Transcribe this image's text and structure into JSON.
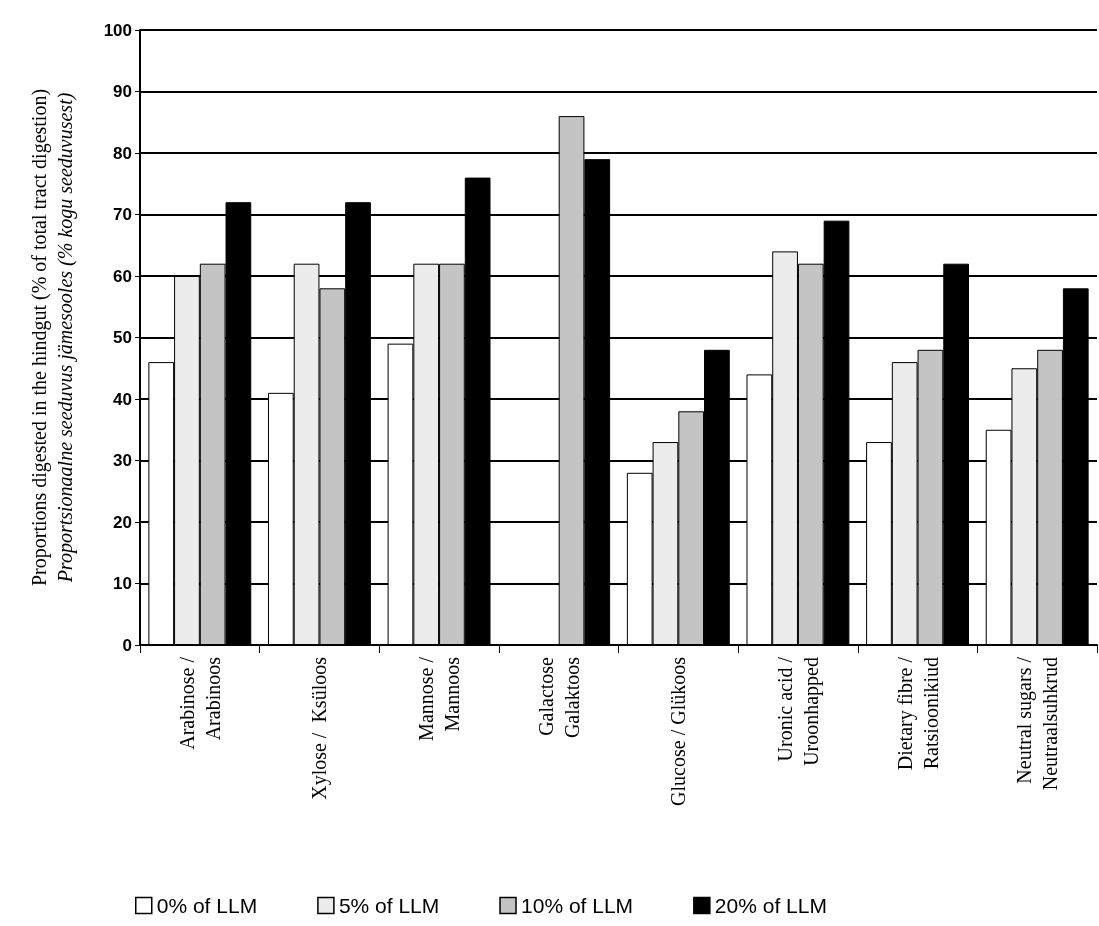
{
  "chart_data": {
    "type": "bar",
    "ylabel": "Proportions digested in the hindgut (% of total tract digestion)\nProportsionaalne seeduvus jämesooles (% kogu seeduvusest)",
    "categories": [
      "Arabinose /\nArabinoos",
      "Xylose /  Ksüloos",
      "Mannose /\nMannoos",
      "Galactose\nGalaktoos",
      "Glucose / Glükoos",
      "Uronic acid /\nUroonhapped",
      "Dietary fibre /\nRatsioonikiud",
      "Neutral sugars /\nNeutraalsuhkrud"
    ],
    "series": [
      {
        "name": "0% of LLM",
        "color": "#ffffff",
        "values": [
          46,
          41,
          49,
          null,
          28,
          44,
          33,
          35
        ]
      },
      {
        "name": "5% of LLM",
        "color": "#ececec",
        "values": [
          60,
          62,
          62,
          null,
          33,
          64,
          46,
          45
        ]
      },
      {
        "name": "10% of LLM",
        "color": "#c4c4c4",
        "values": [
          62,
          58,
          62,
          86,
          38,
          62,
          48,
          48
        ]
      },
      {
        "name": "20% of LLM",
        "color": "#000000",
        "values": [
          72,
          72,
          76,
          79,
          48,
          69,
          62,
          58
        ]
      }
    ],
    "ylim": [
      0,
      100
    ],
    "yticks": [
      0,
      10,
      20,
      30,
      40,
      50,
      60,
      70,
      80,
      90,
      100
    ],
    "grid": "y",
    "legend": "bottom"
  }
}
